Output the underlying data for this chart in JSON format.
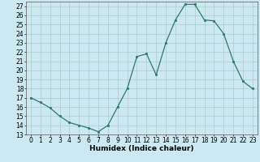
{
  "x": [
    0,
    1,
    2,
    3,
    4,
    5,
    6,
    7,
    8,
    9,
    10,
    11,
    12,
    13,
    14,
    15,
    16,
    17,
    18,
    19,
    20,
    21,
    22,
    23
  ],
  "y": [
    17.0,
    16.5,
    15.9,
    15.0,
    14.3,
    14.0,
    13.7,
    13.3,
    14.0,
    16.0,
    18.0,
    21.5,
    21.8,
    19.5,
    23.0,
    25.5,
    27.2,
    27.2,
    25.5,
    25.4,
    24.0,
    21.0,
    18.8,
    18.0
  ],
  "xlabel": "Humidex (Indice chaleur)",
  "xlim": [
    -0.5,
    23.5
  ],
  "ylim": [
    13,
    27.5
  ],
  "yticks": [
    13,
    14,
    15,
    16,
    17,
    18,
    19,
    20,
    21,
    22,
    23,
    24,
    25,
    26,
    27
  ],
  "xticks": [
    0,
    1,
    2,
    3,
    4,
    5,
    6,
    7,
    8,
    9,
    10,
    11,
    12,
    13,
    14,
    15,
    16,
    17,
    18,
    19,
    20,
    21,
    22,
    23
  ],
  "line_color": "#2d7a6a",
  "marker_color": "#2d7a6a",
  "bg_color": "#cce8f0",
  "grid_color": "#aacccc",
  "tick_fontsize": 5.5,
  "label_fontsize": 6.5
}
